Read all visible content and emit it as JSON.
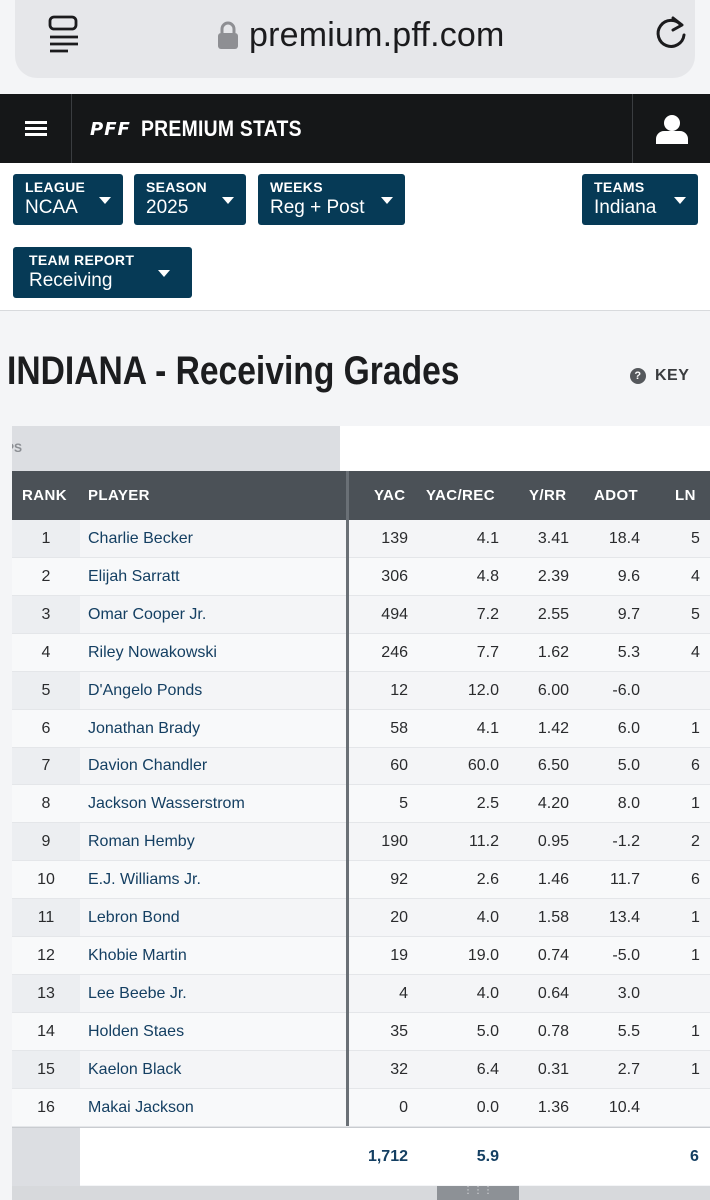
{
  "browser": {
    "url": "premium.pff.com",
    "reader_icon": "reader-view-icon",
    "lock_icon": "lock-icon",
    "reload_icon": "reload-icon"
  },
  "nav": {
    "logo": "PFF",
    "title": "PREMIUM STATS",
    "menu_icon": "hamburger-menu-icon",
    "user_icon": "user-icon"
  },
  "filters": {
    "league": {
      "label": "LEAGUE",
      "value": "NCAA"
    },
    "season": {
      "label": "SEASON",
      "value": "2025"
    },
    "weeks": {
      "label": "WEEKS",
      "value": "Reg + Post"
    },
    "teams": {
      "label": "TEAMS",
      "value": "Indiana"
    },
    "report": {
      "label": "TEAM REPORT",
      "value": "Receiving"
    }
  },
  "page": {
    "title": "INDIANA - Receiving Grades",
    "key_label": "KEY",
    "key_icon": "question-circle-icon"
  },
  "colors": {
    "filter_bg": "#063a56",
    "nav_bg": "#151718",
    "header_bg": "#4b5157",
    "player_link": "#143f62"
  },
  "table": {
    "group_label": "PS",
    "headers": {
      "rank": "RANK",
      "player": "PLAYER",
      "yac": "YAC",
      "yac_rec": "YAC/REC",
      "yrr": "Y/RR",
      "adot": "ADOT",
      "lng": "LN"
    },
    "rows": [
      {
        "rank": "1",
        "player": "Charlie Becker",
        "yac": "139",
        "yac_rec": "4.1",
        "yrr": "3.41",
        "adot": "18.4",
        "lng": "5"
      },
      {
        "rank": "2",
        "player": "Elijah Sarratt",
        "yac": "306",
        "yac_rec": "4.8",
        "yrr": "2.39",
        "adot": "9.6",
        "lng": "4"
      },
      {
        "rank": "3",
        "player": "Omar Cooper Jr.",
        "yac": "494",
        "yac_rec": "7.2",
        "yrr": "2.55",
        "adot": "9.7",
        "lng": "5"
      },
      {
        "rank": "4",
        "player": "Riley Nowakowski",
        "yac": "246",
        "yac_rec": "7.7",
        "yrr": "1.62",
        "adot": "5.3",
        "lng": "4"
      },
      {
        "rank": "5",
        "player": "D'Angelo Ponds",
        "yac": "12",
        "yac_rec": "12.0",
        "yrr": "6.00",
        "adot": "-6.0",
        "lng": ""
      },
      {
        "rank": "6",
        "player": "Jonathan Brady",
        "yac": "58",
        "yac_rec": "4.1",
        "yrr": "1.42",
        "adot": "6.0",
        "lng": "1"
      },
      {
        "rank": "7",
        "player": "Davion Chandler",
        "yac": "60",
        "yac_rec": "60.0",
        "yrr": "6.50",
        "adot": "5.0",
        "lng": "6"
      },
      {
        "rank": "8",
        "player": "Jackson Wasserstrom",
        "yac": "5",
        "yac_rec": "2.5",
        "yrr": "4.20",
        "adot": "8.0",
        "lng": "1"
      },
      {
        "rank": "9",
        "player": "Roman Hemby",
        "yac": "190",
        "yac_rec": "11.2",
        "yrr": "0.95",
        "adot": "-1.2",
        "lng": "2"
      },
      {
        "rank": "10",
        "player": "E.J. Williams Jr.",
        "yac": "92",
        "yac_rec": "2.6",
        "yrr": "1.46",
        "adot": "11.7",
        "lng": "6"
      },
      {
        "rank": "11",
        "player": "Lebron Bond",
        "yac": "20",
        "yac_rec": "4.0",
        "yrr": "1.58",
        "adot": "13.4",
        "lng": "1"
      },
      {
        "rank": "12",
        "player": "Khobie Martin",
        "yac": "19",
        "yac_rec": "19.0",
        "yrr": "0.74",
        "adot": "-5.0",
        "lng": "1"
      },
      {
        "rank": "13",
        "player": "Lee Beebe Jr.",
        "yac": "4",
        "yac_rec": "4.0",
        "yrr": "0.64",
        "adot": "3.0",
        "lng": ""
      },
      {
        "rank": "14",
        "player": "Holden Staes",
        "yac": "35",
        "yac_rec": "5.0",
        "yrr": "0.78",
        "adot": "5.5",
        "lng": "1"
      },
      {
        "rank": "15",
        "player": "Kaelon Black",
        "yac": "32",
        "yac_rec": "6.4",
        "yrr": "0.31",
        "adot": "2.7",
        "lng": "1"
      },
      {
        "rank": "16",
        "player": "Makai Jackson",
        "yac": "0",
        "yac_rec": "0.0",
        "yrr": "1.36",
        "adot": "10.4",
        "lng": ""
      }
    ],
    "totals": {
      "yac": "1,712",
      "yac_rec": "5.9",
      "lng": "6"
    },
    "scroll_handle_icon": "drag-handle-icon"
  }
}
